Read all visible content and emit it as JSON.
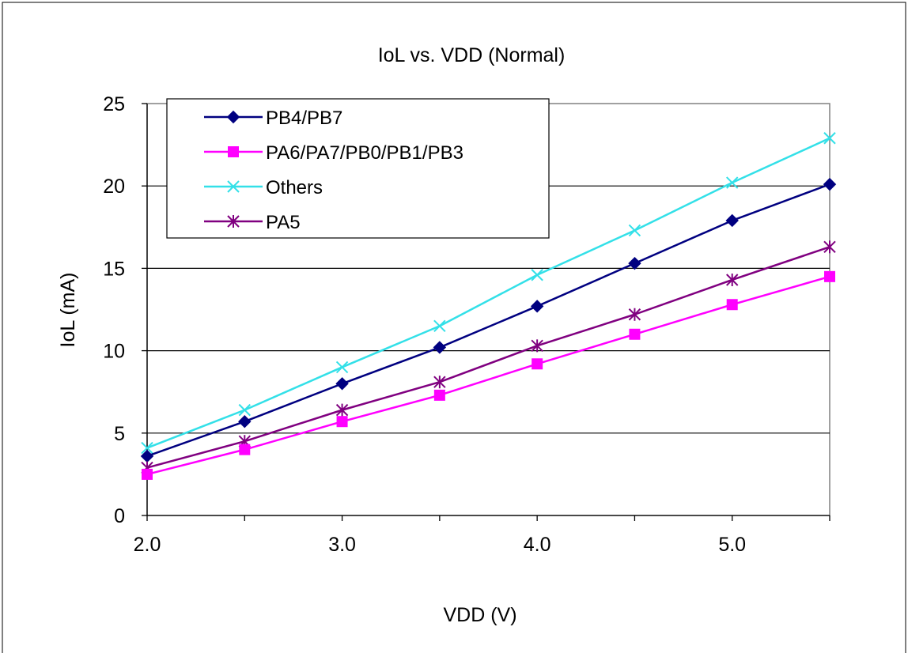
{
  "chart_data": {
    "type": "line",
    "title": "IoL vs. VDD (Normal)",
    "xlabel": "VDD (V)",
    "ylabel": "IoL (mA)",
    "x": [
      2.0,
      2.5,
      3.0,
      3.5,
      4.0,
      4.5,
      5.0,
      5.5
    ],
    "xlim": [
      2.0,
      5.5
    ],
    "ylim": [
      0,
      25
    ],
    "x_ticks": [
      "2.0",
      "3.0",
      "4.0",
      "5.0"
    ],
    "x_tick_values": [
      2.0,
      3.0,
      4.0,
      5.0
    ],
    "y_ticks": [
      "0",
      "5",
      "10",
      "15",
      "20",
      "25"
    ],
    "y_tick_values": [
      0,
      5,
      10,
      15,
      20,
      25
    ],
    "grid": "horizontal",
    "legend_position": "top-left",
    "series": [
      {
        "name": "PB4/PB7",
        "color": "#000080",
        "marker": "diamond",
        "values": [
          3.6,
          5.7,
          8.0,
          10.2,
          12.7,
          15.3,
          17.9,
          20.1
        ]
      },
      {
        "name": "PA6/PA7/PB0/PB1/PB3",
        "color": "#FF00FF",
        "marker": "square",
        "values": [
          2.5,
          4.0,
          5.7,
          7.3,
          9.2,
          11.0,
          12.8,
          14.5
        ]
      },
      {
        "name": "Others",
        "color": "#33E0E8",
        "marker": "x",
        "values": [
          4.1,
          6.4,
          9.0,
          11.5,
          14.6,
          17.3,
          20.2,
          22.9
        ]
      },
      {
        "name": "PA5",
        "color": "#800080",
        "marker": "asterisk",
        "values": [
          2.9,
          4.5,
          6.4,
          8.1,
          10.3,
          12.2,
          14.3,
          16.3
        ]
      }
    ]
  }
}
